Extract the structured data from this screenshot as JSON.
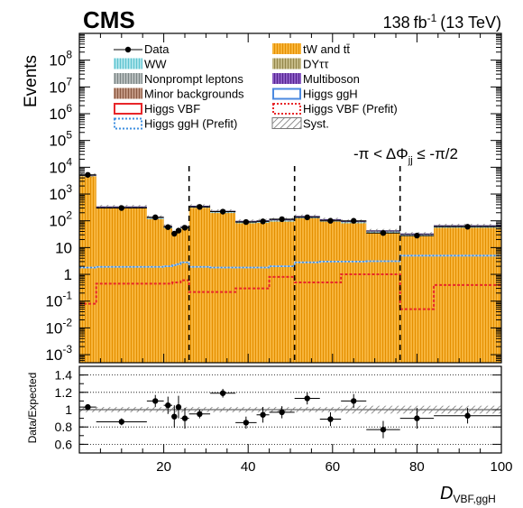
{
  "header": {
    "experiment": "CMS",
    "lumi_value": "138",
    "lumi_unit": "fb",
    "lumi_exp": "-1",
    "energy": "(13 TeV)"
  },
  "region_label": {
    "prefix": "-π < ΔΦ",
    "sub": "jj",
    "suffix": " ≤ -π/2"
  },
  "y_axis_label": "Events",
  "ratio_y_label": "Data/Expected",
  "x_axis_label": {
    "main": "D",
    "sub": "VBF,ggH"
  },
  "legend": [
    {
      "key": "data",
      "label": "Data",
      "style": "marker"
    },
    {
      "key": "ww",
      "label": "WW",
      "style": "hatch",
      "color": "#7fd3dc"
    },
    {
      "key": "nonprompt",
      "label": "Nonprompt leptons",
      "style": "hatch",
      "color": "#8f9797"
    },
    {
      "key": "minor",
      "label": "Minor backgrounds",
      "style": "hatch",
      "color": "#9c6b55"
    },
    {
      "key": "vbf",
      "label": "Higgs VBF",
      "style": "line",
      "color": "#e8262a"
    },
    {
      "key": "ggh_prefit",
      "label": "Higgs ggH (Prefit)",
      "style": "dotted",
      "color": "#3f8fe0"
    },
    {
      "key": "top",
      "label": "tW and tt̄",
      "style": "hatch",
      "color": "#f5a31a"
    },
    {
      "key": "dy",
      "label": "DYττ",
      "style": "hatch",
      "color": "#a79a58"
    },
    {
      "key": "multiboson",
      "label": "Multiboson",
      "style": "hatch",
      "color": "#6a35a8"
    },
    {
      "key": "ggh",
      "label": "Higgs ggH",
      "style": "line",
      "color": "#4b8ae0"
    },
    {
      "key": "vbf_prefit",
      "label": "Higgs VBF (Prefit)",
      "style": "dotted",
      "color": "#e8262a"
    },
    {
      "key": "syst",
      "label": "Syst.",
      "style": "syst",
      "color": "#777777"
    }
  ],
  "chart_data": {
    "type": "bar",
    "stacked": true,
    "xlim": [
      0,
      100
    ],
    "ylim_log": [
      0.0005,
      1000000000
    ],
    "y_scale": "log",
    "ratio_ylim": [
      0.5,
      1.5
    ],
    "x_ticks": [
      20,
      40,
      60,
      80,
      100
    ],
    "y_ticks": [
      {
        "v": 0.001,
        "m": "10",
        "e": "-3"
      },
      {
        "v": 0.01,
        "m": "10",
        "e": "-2"
      },
      {
        "v": 0.1,
        "m": "10",
        "e": "-1"
      },
      {
        "v": 1,
        "m": "1",
        "e": ""
      },
      {
        "v": 10,
        "m": "10",
        "e": ""
      },
      {
        "v": 100,
        "m": "10",
        "e": "2"
      },
      {
        "v": 1000,
        "m": "10",
        "e": "3"
      },
      {
        "v": 10000,
        "m": "10",
        "e": "4"
      },
      {
        "v": 100000,
        "m": "10",
        "e": "5"
      },
      {
        "v": 1000000,
        "m": "10",
        "e": "6"
      },
      {
        "v": 10000000,
        "m": "10",
        "e": "7"
      },
      {
        "v": 100000000,
        "m": "10",
        "e": "8"
      }
    ],
    "ratio_ticks": [
      0.6,
      0.8,
      1,
      1.2,
      1.4
    ],
    "dashed_lines_x": [
      26,
      51,
      76
    ],
    "bins": [
      {
        "lo": 0,
        "hi": 4,
        "total": 5000,
        "top_frac": 0.93,
        "ggh": 1.8,
        "vbf": 0.08,
        "data": 5200,
        "ratio": 1.03,
        "rerr": 0.015
      },
      {
        "lo": 4,
        "hi": 16,
        "total": 330,
        "top_frac": 0.88,
        "ggh": 1.9,
        "vbf": 0.45,
        "data": 300,
        "ratio": 0.86,
        "rerr": 0.04
      },
      {
        "lo": 16,
        "hi": 20,
        "total": 135,
        "top_frac": 0.86,
        "ggh": 1.9,
        "vbf": 0.45,
        "data": 135,
        "ratio": 1.1,
        "rerr": 0.07
      },
      {
        "lo": 20,
        "hi": 22,
        "total": 62,
        "top_frac": 0.85,
        "ggh": 2.0,
        "vbf": 0.45,
        "data": 58,
        "ratio": 1.05,
        "rerr": 0.1
      },
      {
        "lo": 22,
        "hi": 23,
        "total": 38,
        "top_frac": 0.85,
        "ggh": 2.2,
        "vbf": 0.5,
        "data": 33,
        "ratio": 0.92,
        "rerr": 0.13
      },
      {
        "lo": 23,
        "hi": 24,
        "total": 45,
        "top_frac": 0.85,
        "ggh": 2.4,
        "vbf": 0.5,
        "data": 43,
        "ratio": 1.03,
        "rerr": 0.13
      },
      {
        "lo": 24,
        "hi": 26,
        "total": 60,
        "top_frac": 0.85,
        "ggh": 2.8,
        "vbf": 0.6,
        "data": 55,
        "ratio": 0.9,
        "rerr": 0.12
      },
      {
        "lo": 26,
        "hi": 31,
        "total": 350,
        "top_frac": 0.88,
        "ggh": 1.9,
        "vbf": 0.22,
        "data": 330,
        "ratio": 0.95,
        "rerr": 0.05
      },
      {
        "lo": 31,
        "hi": 37,
        "total": 225,
        "top_frac": 0.87,
        "ggh": 1.8,
        "vbf": 0.22,
        "data": 220,
        "ratio": 1.19,
        "rerr": 0.05
      },
      {
        "lo": 37,
        "hi": 42,
        "total": 95,
        "top_frac": 0.85,
        "ggh": 1.8,
        "vbf": 0.3,
        "data": 90,
        "ratio": 0.85,
        "rerr": 0.07
      },
      {
        "lo": 42,
        "hi": 45,
        "total": 100,
        "top_frac": 0.85,
        "ggh": 1.8,
        "vbf": 0.3,
        "data": 95,
        "ratio": 0.94,
        "rerr": 0.09
      },
      {
        "lo": 45,
        "hi": 51,
        "total": 110,
        "top_frac": 0.85,
        "ggh": 2.0,
        "vbf": 0.8,
        "data": 115,
        "ratio": 0.97,
        "rerr": 0.07
      },
      {
        "lo": 51,
        "hi": 57,
        "total": 145,
        "top_frac": 0.86,
        "ggh": 2.8,
        "vbf": 0.5,
        "data": 135,
        "ratio": 1.13,
        "rerr": 0.07
      },
      {
        "lo": 57,
        "hi": 62,
        "total": 110,
        "top_frac": 0.85,
        "ggh": 3.0,
        "vbf": 0.5,
        "data": 100,
        "ratio": 0.89,
        "rerr": 0.08
      },
      {
        "lo": 62,
        "hi": 68,
        "total": 95,
        "top_frac": 0.85,
        "ggh": 3.0,
        "vbf": 1.0,
        "data": 100,
        "ratio": 1.1,
        "rerr": 0.08
      },
      {
        "lo": 68,
        "hi": 76,
        "total": 42,
        "top_frac": 0.84,
        "ggh": 3.1,
        "vbf": 1.0,
        "data": 35,
        "ratio": 0.77,
        "rerr": 0.1
      },
      {
        "lo": 76,
        "hi": 84,
        "total": 32,
        "top_frac": 0.83,
        "ggh": 5.0,
        "vbf": 0.05,
        "data": 28,
        "ratio": 0.9,
        "rerr": 0.12
      },
      {
        "lo": 84,
        "hi": 100,
        "total": 65,
        "top_frac": 0.84,
        "ggh": 5.0,
        "vbf": 0.4,
        "data": 60,
        "ratio": 0.93,
        "rerr": 0.09
      }
    ]
  }
}
